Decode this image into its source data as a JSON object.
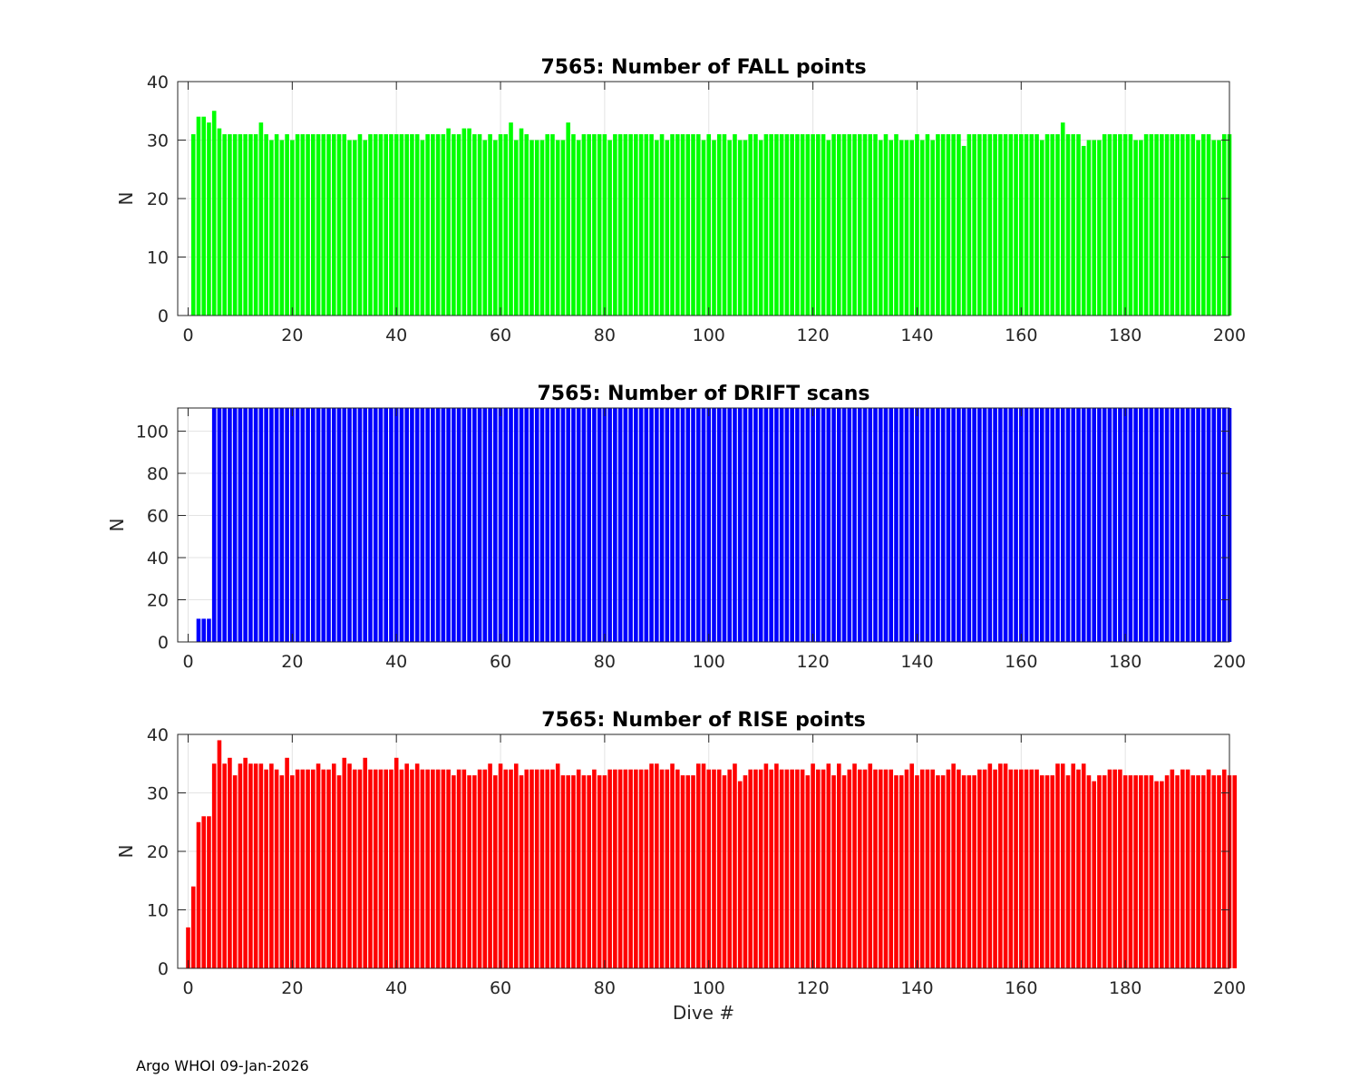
{
  "footer": "Argo WHOI 09-Jan-2026",
  "chart_data": [
    {
      "type": "bar",
      "title": "7565: Number of FALL points",
      "xlabel": "",
      "ylabel": "N",
      "xlim": [
        -2,
        200
      ],
      "ylim": [
        0,
        40
      ],
      "xticks": [
        0,
        20,
        40,
        60,
        80,
        100,
        120,
        140,
        160,
        180,
        200
      ],
      "yticks": [
        0,
        10,
        20,
        30,
        40
      ],
      "grid": true,
      "color": "#00ff00",
      "x_start": 1,
      "values": [
        31,
        34,
        34,
        33,
        35,
        32,
        31,
        31,
        31,
        31,
        31,
        31,
        31,
        33,
        31,
        30,
        31,
        30,
        31,
        30,
        31,
        31,
        31,
        31,
        31,
        31,
        31,
        31,
        31,
        31,
        30,
        30,
        31,
        30,
        31,
        31,
        31,
        31,
        31,
        31,
        31,
        31,
        31,
        31,
        30,
        31,
        31,
        31,
        31,
        32,
        31,
        31,
        32,
        32,
        31,
        31,
        30,
        31,
        30,
        31,
        31,
        33,
        30,
        32,
        31,
        30,
        30,
        30,
        31,
        31,
        30,
        30,
        33,
        31,
        30,
        31,
        31,
        31,
        31,
        31,
        30,
        31,
        31,
        31,
        31,
        31,
        31,
        31,
        31,
        30,
        31,
        30,
        31,
        31,
        31,
        31,
        31,
        31,
        30,
        31,
        30,
        31,
        31,
        30,
        31,
        30,
        30,
        31,
        31,
        30,
        31,
        31,
        31,
        31,
        31,
        31,
        31,
        31,
        31,
        31,
        31,
        31,
        30,
        31,
        31,
        31,
        31,
        31,
        31,
        31,
        31,
        31,
        30,
        31,
        30,
        31,
        30,
        30,
        30,
        31,
        30,
        31,
        30,
        31,
        31,
        31,
        31,
        31,
        29,
        31,
        31,
        31,
        31,
        31,
        31,
        31,
        31,
        31,
        31,
        31,
        31,
        31,
        31,
        30,
        31,
        31,
        31,
        33,
        31,
        31,
        31,
        29,
        30,
        30,
        30,
        31,
        31,
        31,
        31,
        31,
        31,
        30,
        30,
        31,
        31,
        31,
        31,
        31,
        31,
        31,
        31,
        31,
        31,
        30,
        31,
        31,
        30,
        30,
        31,
        31
      ]
    },
    {
      "type": "bar",
      "title": "7565: Number of DRIFT scans",
      "xlabel": "",
      "ylabel": "N",
      "xlim": [
        -2,
        200
      ],
      "ylim": [
        0,
        111
      ],
      "xticks": [
        0,
        20,
        40,
        60,
        80,
        100,
        120,
        140,
        160,
        180,
        200
      ],
      "yticks": [
        0,
        20,
        40,
        60,
        80,
        100
      ],
      "grid": true,
      "color": "#0000ff",
      "x_start": 1,
      "values": [
        0,
        11,
        11,
        11,
        111,
        111,
        111,
        111,
        111,
        111,
        111,
        111,
        111,
        111,
        111,
        111,
        111,
        111,
        111,
        111,
        111,
        111,
        111,
        111,
        111,
        111,
        111,
        111,
        111,
        111,
        111,
        111,
        111,
        111,
        111,
        111,
        111,
        111,
        111,
        111,
        111,
        111,
        111,
        111,
        111,
        111,
        111,
        111,
        111,
        111,
        111,
        111,
        111,
        111,
        111,
        111,
        111,
        111,
        111,
        111,
        111,
        111,
        111,
        111,
        111,
        111,
        111,
        111,
        111,
        111,
        111,
        111,
        111,
        111,
        111,
        111,
        111,
        111,
        111,
        111,
        111,
        111,
        111,
        111,
        111,
        111,
        111,
        111,
        111,
        111,
        111,
        111,
        111,
        111,
        111,
        111,
        111,
        111,
        111,
        111,
        111,
        111,
        111,
        111,
        111,
        111,
        111,
        111,
        111,
        111,
        111,
        111,
        111,
        111,
        111,
        111,
        111,
        111,
        111,
        111,
        111,
        111,
        111,
        111,
        111,
        111,
        111,
        111,
        111,
        111,
        111,
        111,
        111,
        111,
        111,
        111,
        111,
        111,
        111,
        111,
        111,
        111,
        111,
        111,
        111,
        111,
        111,
        111,
        111,
        111,
        111,
        111,
        111,
        111,
        111,
        111,
        111,
        111,
        111,
        111,
        111,
        111,
        111,
        111,
        111,
        111,
        111,
        111,
        111,
        111,
        111,
        111,
        111,
        111,
        111,
        111,
        111,
        111,
        111,
        111,
        111,
        111,
        111,
        111,
        111,
        111,
        111,
        111,
        111,
        111,
        111,
        111,
        111,
        111,
        111,
        111,
        111,
        111,
        111,
        111
      ]
    },
    {
      "type": "bar",
      "title": "7565: Number of RISE points",
      "xlabel": "Dive #",
      "ylabel": "N",
      "xlim": [
        -2,
        200
      ],
      "ylim": [
        0,
        40
      ],
      "xticks": [
        0,
        20,
        40,
        60,
        80,
        100,
        120,
        140,
        160,
        180,
        200
      ],
      "yticks": [
        0,
        10,
        20,
        30,
        40
      ],
      "grid": true,
      "color": "#ff0000",
      "x_start": 0,
      "values": [
        7,
        14,
        25,
        26,
        26,
        35,
        39,
        35,
        36,
        33,
        35,
        36,
        35,
        35,
        35,
        34,
        35,
        34,
        33,
        36,
        33,
        34,
        34,
        34,
        34,
        35,
        34,
        34,
        35,
        33,
        36,
        35,
        34,
        34,
        36,
        34,
        34,
        34,
        34,
        34,
        36,
        34,
        35,
        34,
        35,
        34,
        34,
        34,
        34,
        34,
        34,
        33,
        34,
        34,
        33,
        33,
        34,
        34,
        35,
        33,
        35,
        34,
        34,
        35,
        33,
        34,
        34,
        34,
        34,
        34,
        34,
        35,
        33,
        33,
        33,
        34,
        33,
        33,
        34,
        33,
        33,
        34,
        34,
        34,
        34,
        34,
        34,
        34,
        34,
        35,
        35,
        34,
        34,
        35,
        34,
        33,
        33,
        33,
        35,
        35,
        34,
        34,
        34,
        33,
        34,
        35,
        32,
        33,
        34,
        34,
        34,
        35,
        34,
        35,
        34,
        34,
        34,
        34,
        34,
        33,
        35,
        34,
        34,
        35,
        33,
        35,
        33,
        34,
        35,
        34,
        34,
        35,
        34,
        34,
        34,
        34,
        33,
        33,
        34,
        35,
        33,
        34,
        34,
        34,
        33,
        33,
        34,
        35,
        34,
        33,
        33,
        33,
        34,
        34,
        35,
        34,
        35,
        35,
        34,
        34,
        34,
        34,
        34,
        34,
        33,
        33,
        33,
        35,
        35,
        33,
        35,
        34,
        35,
        33,
        32,
        33,
        33,
        34,
        34,
        34,
        33,
        33,
        33,
        33,
        33,
        33,
        32,
        32,
        33,
        34,
        33,
        34,
        34,
        33,
        33,
        33,
        34,
        33,
        33,
        34,
        33,
        33
      ]
    }
  ]
}
